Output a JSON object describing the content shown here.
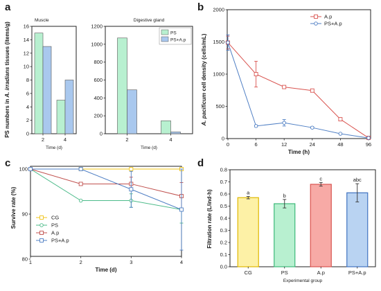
{
  "chart_data": [
    {
      "panel": "a",
      "type": "bar",
      "ylabel_parts": [
        "PS numbers in ",
        "A. irradians",
        " tissues (items/g)"
      ],
      "xlabel": "Time (d)",
      "legend": [
        "PS",
        "PS+A.p"
      ],
      "legend_position": "top-right",
      "subplots": [
        {
          "title": "Muscle",
          "categories": [
            "2",
            "4"
          ],
          "ylim": [
            0,
            16
          ],
          "yticks": [
            0,
            2,
            4,
            6,
            8,
            10,
            12,
            14,
            16
          ],
          "series": [
            {
              "name": "PS",
              "values": [
                15,
                5
              ]
            },
            {
              "name": "PS+A.p",
              "values": [
                13,
                8
              ]
            }
          ]
        },
        {
          "title": "Digestive gland",
          "categories": [
            "2",
            "4"
          ],
          "ylim": [
            0,
            1200
          ],
          "yticks": [
            0,
            200,
            400,
            600,
            800,
            1000,
            1200
          ],
          "series": [
            {
              "name": "PS",
              "values": [
                1070,
                145
              ]
            },
            {
              "name": "PS+A.p",
              "values": [
                490,
                20
              ]
            }
          ]
        }
      ],
      "colors": {
        "PS": "#b8f0d0",
        "PS+A.p": "#a9c8ee"
      }
    },
    {
      "panel": "b",
      "type": "line",
      "ylabel_parts": [
        "A. pacificum",
        " cell density (cells/mL)"
      ],
      "xlabel": "Time (h)",
      "categories": [
        "0",
        "6",
        "12",
        "24",
        "48",
        "96"
      ],
      "ylim": [
        0,
        2000
      ],
      "yticks": [
        0,
        500,
        1000,
        1500,
        2000
      ],
      "legend_position": "top-right",
      "series": [
        {
          "name": "A.p",
          "color": "#d9534f",
          "values": [
            1490,
            1000,
            800,
            745,
            300,
            10
          ],
          "errors": [
            100,
            200,
            20,
            20,
            20,
            10
          ]
        },
        {
          "name": "PS+A.p",
          "color": "#4f7fc4",
          "values": [
            1490,
            195,
            245,
            170,
            75,
            10
          ],
          "errors": [
            120,
            15,
            50,
            15,
            10,
            5
          ]
        }
      ]
    },
    {
      "panel": "c",
      "type": "line",
      "ylabel": "Survive rate (%)",
      "xlabel": "Time (d)",
      "x": [
        1,
        2,
        3,
        4
      ],
      "xticks": [
        "1",
        "2",
        "3",
        "4"
      ],
      "ylim": [
        80,
        100
      ],
      "yticks": [
        80,
        90,
        100
      ],
      "legend_position": "bottom-left",
      "series": [
        {
          "name": "CG",
          "color": "#f0c419",
          "values": [
            100,
            100,
            100,
            100
          ],
          "errors": [
            0,
            0,
            0,
            0
          ]
        },
        {
          "name": "PS",
          "color": "#4dbb8a",
          "values": [
            100,
            93,
            93,
            91
          ],
          "errors": [
            0,
            0,
            1.5,
            3
          ]
        },
        {
          "name": "A.p",
          "color": "#c0504d",
          "values": [
            100,
            96.7,
            96.7,
            94
          ],
          "errors": [
            0,
            0,
            1.5,
            3
          ]
        },
        {
          "name": "PS+A.p",
          "color": "#4f7fc4",
          "values": [
            100,
            100,
            95.5,
            91
          ],
          "errors": [
            0,
            0,
            4,
            9
          ]
        }
      ]
    },
    {
      "panel": "d",
      "type": "bar",
      "ylabel": "Filtration rate (L/ind·h)",
      "xlabel": "Experimental group",
      "categories": [
        "CG",
        "PS",
        "A.p",
        "PS+A.p"
      ],
      "ylim": [
        0,
        0.8
      ],
      "yticks": [
        "0.0",
        "0.1",
        "0.2",
        "0.3",
        "0.4",
        "0.5",
        "0.6",
        "0.7",
        "0.8"
      ],
      "values": [
        0.57,
        0.52,
        0.68,
        0.61
      ],
      "errors": [
        0.01,
        0.035,
        0.015,
        0.075
      ],
      "annotations": [
        "a",
        "b",
        "c",
        "abc"
      ],
      "colors": [
        "#fdf1a6",
        "#b8f0d0",
        "#f7aaa6",
        "#b9d3f2"
      ],
      "edge_colors": [
        "#e0b800",
        "#3cb878",
        "#d9534f",
        "#3f72c0"
      ]
    }
  ]
}
